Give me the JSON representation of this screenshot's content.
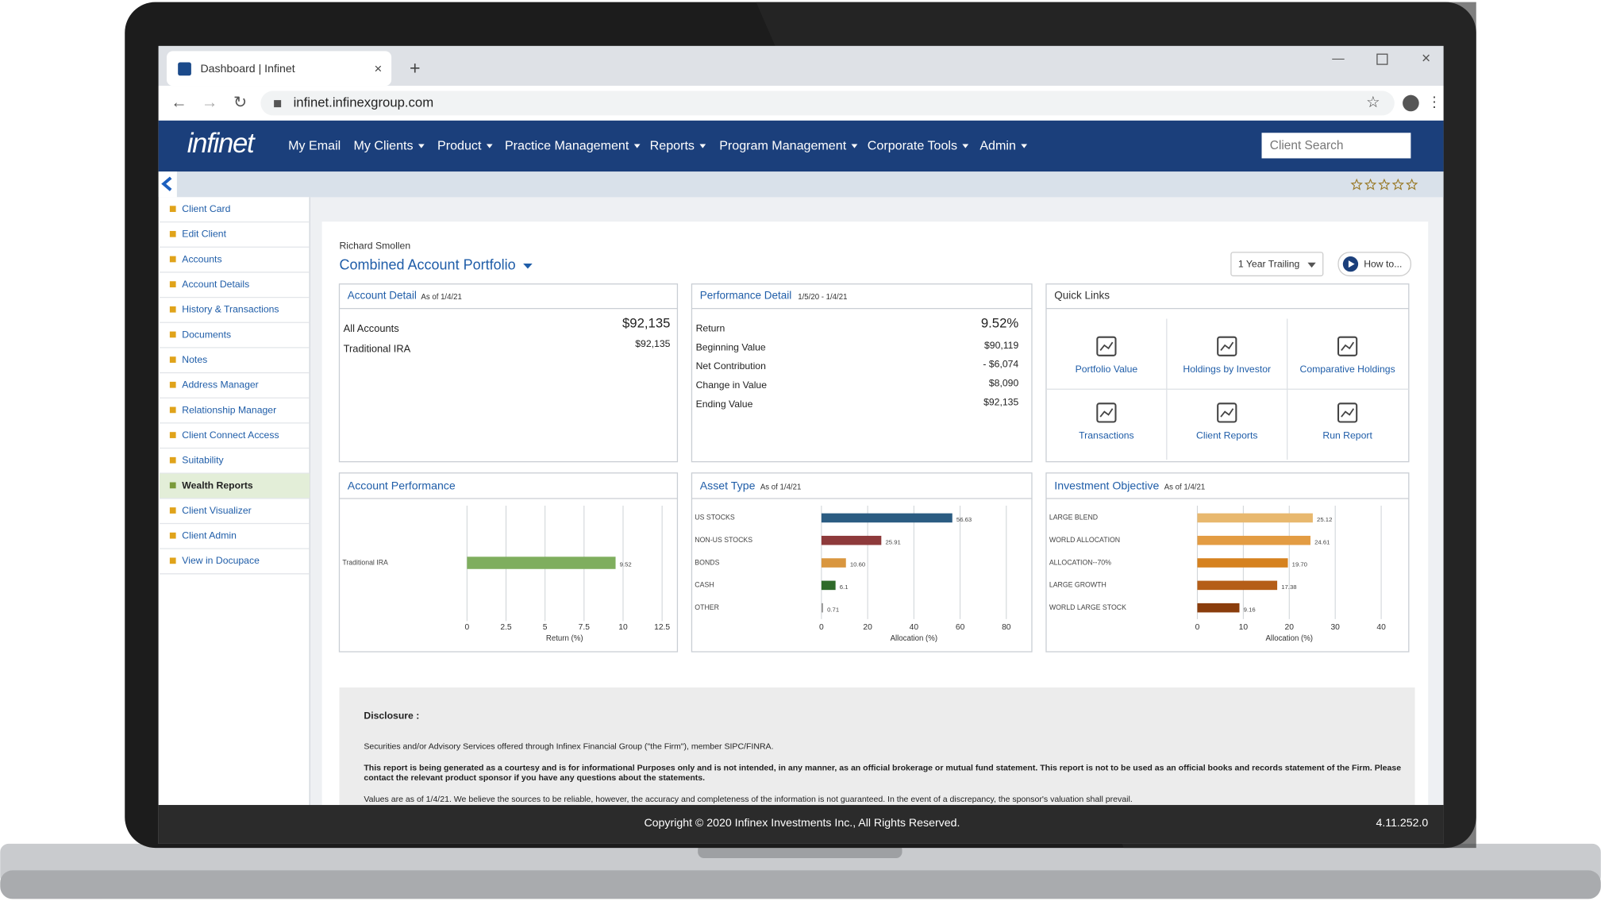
{
  "browser": {
    "tab_title": "Dashboard | Infinet",
    "url": "infinet.infinexgroup.com"
  },
  "nav": {
    "logo": "infinet",
    "items": [
      "My Email",
      "My Clients",
      "Product",
      "Practice Management",
      "Reports",
      "Program Management",
      "Corporate Tools",
      "Admin"
    ],
    "dropdown": [
      false,
      true,
      true,
      true,
      true,
      true,
      true,
      true
    ],
    "search_placeholder": "Client Search"
  },
  "sidebar": {
    "items": [
      "Client Card",
      "Edit Client",
      "Accounts",
      "Account Details",
      "History & Transactions",
      "Documents",
      "Notes",
      "Address Manager",
      "Relationship Manager",
      "Client Connect Access",
      "Suitability",
      "Wealth Reports",
      "Client Visualizer",
      "Client Admin",
      "View in Docupace"
    ],
    "active_index": 11
  },
  "header": {
    "client": "Richard Smollen",
    "portfolio": "Combined Account Portfolio",
    "period": "1 Year Trailing",
    "help": "How to..."
  },
  "account_detail": {
    "title": "Account Detail",
    "as_of": "As of 1/4/21",
    "rows": [
      [
        "All Accounts",
        "$92,135"
      ],
      [
        "Traditional IRA",
        "$92,135"
      ]
    ]
  },
  "performance_detail": {
    "title": "Performance Detail",
    "range": "1/5/20 - 1/4/21",
    "rows": [
      [
        "Return",
        "9.52%"
      ],
      [
        "Beginning Value",
        "$90,119"
      ],
      [
        "Net Contribution",
        "- $6,074"
      ],
      [
        "Change in Value",
        "$8,090"
      ],
      [
        "Ending Value",
        "$92,135"
      ]
    ]
  },
  "quick_links": {
    "title": "Quick Links",
    "items": [
      "Portfolio Value",
      "Holdings by Investor",
      "Comparative Holdings",
      "Transactions",
      "Client Reports",
      "Run Report"
    ]
  },
  "charts": [
    {
      "type": "bar",
      "title": "Account Performance",
      "categories": [
        "Traditional IRA"
      ],
      "values": [
        9.52
      ],
      "colors": [
        "#7fae5e"
      ],
      "xlim": [
        0,
        12.5
      ],
      "xticks": [
        0,
        2.5,
        5,
        7.5,
        10,
        12.5
      ],
      "xlabel": "Return (%)",
      "grid": true
    },
    {
      "type": "bar",
      "title": "Asset Type",
      "subtitle": "As of 1/4/21",
      "categories": [
        "US STOCKS",
        "NON-US STOCKS",
        "BONDS",
        "CASH",
        "OTHER"
      ],
      "values": [
        56.63,
        25.91,
        10.6,
        6.1,
        0.71
      ],
      "value_labels": [
        "56.63",
        "25.91",
        "10.60",
        "6.1",
        "0.71"
      ],
      "colors": [
        "#2b5c82",
        "#8e3a3b",
        "#d9963f",
        "#2f6b2a",
        "#9a9a9a"
      ],
      "xlim": [
        0,
        80
      ],
      "xticks": [
        0,
        20,
        40,
        60,
        80
      ],
      "xlabel": "Allocation (%)",
      "grid": true
    },
    {
      "type": "bar",
      "title": "Investment Objective",
      "subtitle": "As of 1/4/21",
      "categories": [
        "LARGE BLEND",
        "WORLD ALLOCATION",
        "ALLOCATION--70%",
        "LARGE GROWTH",
        "WORLD LARGE STOCK"
      ],
      "values": [
        25.12,
        24.61,
        19.7,
        17.38,
        9.16
      ],
      "value_labels": [
        "25.12",
        "24.61",
        "19.70",
        "17.38",
        "9.16"
      ],
      "colors": [
        "#e8b86e",
        "#e39c43",
        "#d6821f",
        "#b55e18",
        "#8a3d0c"
      ],
      "xlim": [
        0,
        40
      ],
      "xticks": [
        0,
        10,
        20,
        30,
        40
      ],
      "xlabel": "Allocation (%)",
      "grid": true
    }
  ],
  "disclosure": {
    "title": "Disclosure :",
    "paragraphs": [
      "Securities and/or Advisory Services offered through Infinex Financial Group (\"the Firm\"), member SIPC/FINRA.",
      "This report is being generated as a courtesy and is for informational Purposes only and is not intended, in any manner, as an official brokerage or mutual fund statement. This report is not to be used as an official books and records statement of the Firm. Please contact the relevant product sponsor if you have any questions about the statements.",
      "Values are as of 1/4/21. We believe the sources to be reliable, however, the accuracy and completeness of the information is not guaranteed. In the event of a discrepancy, the sponsor's valuation shall prevail."
    ]
  },
  "footer": {
    "copyright": "Copyright © 2020 Infinex Investments Inc., All Rights Reserved.",
    "version": "4.11.252.0"
  }
}
